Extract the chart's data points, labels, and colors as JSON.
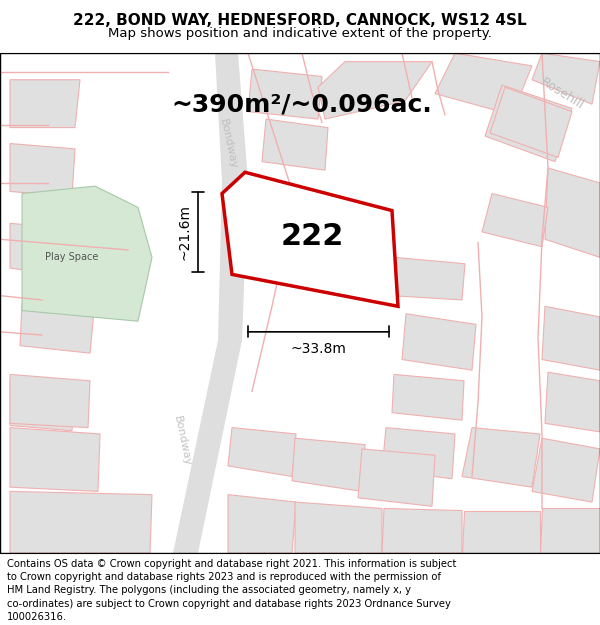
{
  "title_line1": "222, BOND WAY, HEDNESFORD, CANNOCK, WS12 4SL",
  "title_line2": "Map shows position and indicative extent of the property.",
  "area_text": "~390m²/~0.096ac.",
  "property_number": "222",
  "dim_height": "~21.6m",
  "dim_width": "~33.8m",
  "footer_lines": [
    "Contains OS data © Crown copyright and database right 2021. This information is subject",
    "to Crown copyright and database rights 2023 and is reproduced with the permission of",
    "HM Land Registry. The polygons (including the associated geometry, namely x, y",
    "co-ordinates) are subject to Crown copyright and database rights 2023 Ordnance Survey",
    "100026316."
  ],
  "bg_color": "#f0f0f0",
  "map_bg": "#ffffff",
  "road_color_light": "#f0b0b0",
  "property_outline_color": "#cc0000",
  "building_color": "#e0e0e0",
  "road_stripe_color": "#d0d0d0",
  "green_area_color": "#d4e8d4",
  "title_fontsize": 11,
  "subtitle_fontsize": 9.5,
  "area_fontsize": 18,
  "number_fontsize": 22,
  "dim_fontsize": 10,
  "footer_fontsize": 7.2,
  "bondway_label_color": "#bbbbbb",
  "rosehill_label_color": "#bbbbbb"
}
